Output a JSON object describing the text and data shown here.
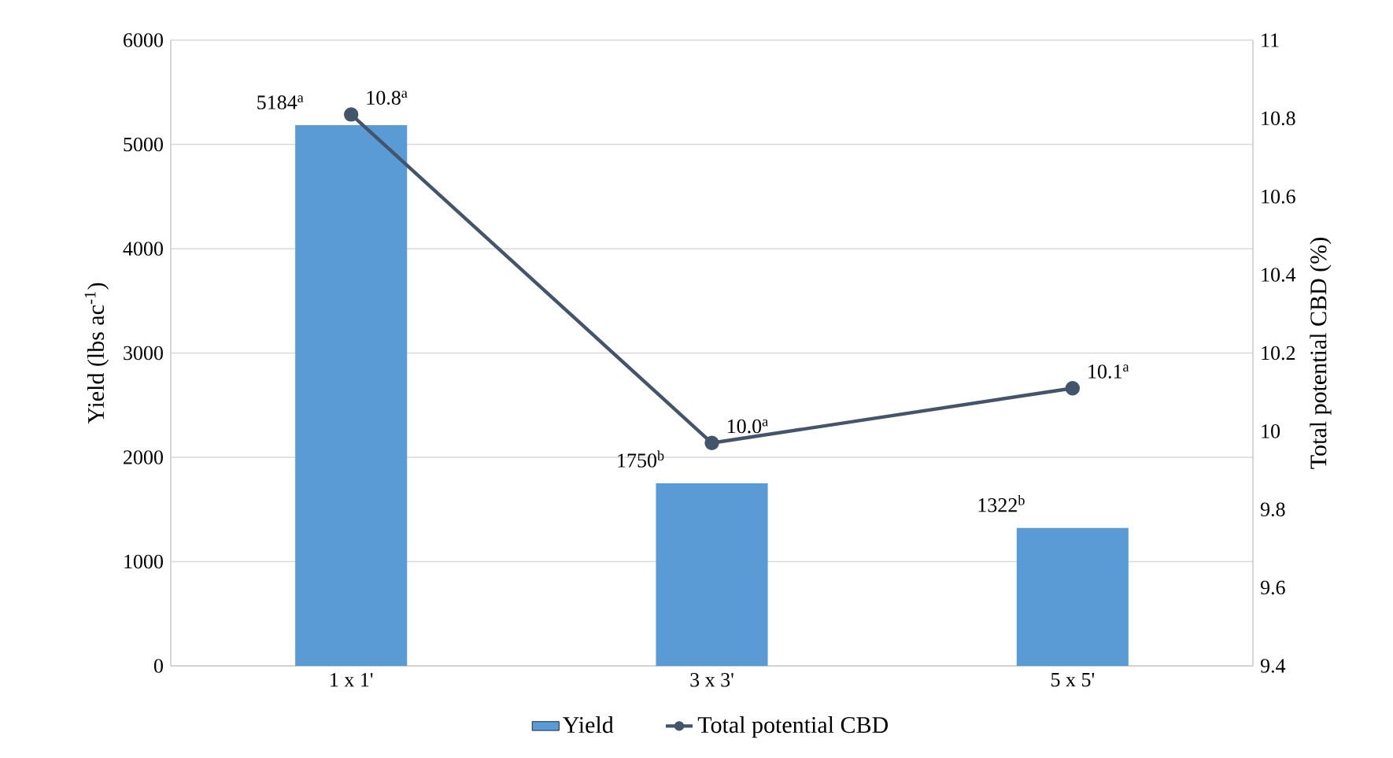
{
  "chart_data": {
    "type": "bar",
    "categories": [
      "1 x 1'",
      "3 x 3'",
      "5 x 5'"
    ],
    "series": [
      {
        "name": "Yield",
        "color": "#5b9bd5",
        "values": [
          5184,
          1750,
          1322
        ],
        "value_labels": [
          "5184$^{a}$",
          "1750$^{b}$",
          "1322$^{b}$"
        ]
      },
      {
        "name": "Total potential CBD",
        "type": "line",
        "axis": "y2",
        "color": "#44546a",
        "marker": "circle",
        "values": [
          10.81,
          9.97,
          10.11
        ],
        "value_labels": [
          "10.8$^{a}$",
          "10.0$^{a}$",
          "10.1$^{a}$"
        ]
      }
    ],
    "ylabel": "Yield (lbs ac$^{-1}$)",
    "y2label": "Total potential CBD (%)",
    "ylim": [
      0,
      6000
    ],
    "yticks": [
      0,
      1000,
      2000,
      3000,
      4000,
      5000,
      6000
    ],
    "y2lim": [
      9.4,
      11
    ],
    "y2ticks": [
      9.4,
      9.6,
      9.8,
      10,
      10.2,
      10.4,
      10.6,
      10.8,
      11
    ],
    "grid": "y",
    "legend": "bottom"
  }
}
